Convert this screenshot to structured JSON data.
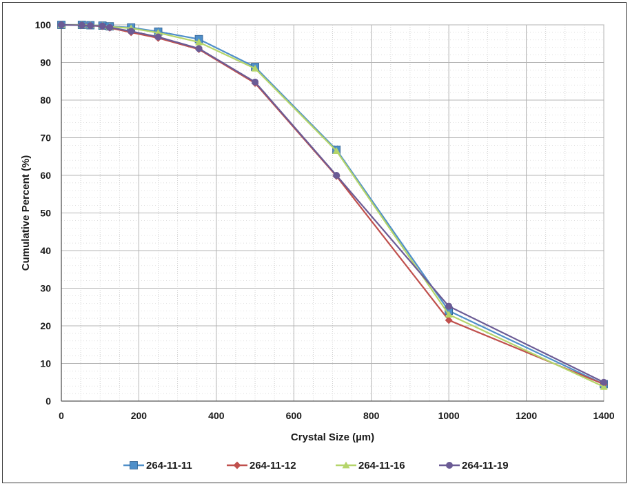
{
  "chart_data": {
    "type": "line",
    "title": "",
    "xlabel": "Crystal Size (µm)",
    "ylabel": "Cumulative Percent (%)",
    "xlim": [
      0,
      1400
    ],
    "ylim": [
      0,
      100
    ],
    "x_ticks": [
      "0",
      "200",
      "400",
      "600",
      "800",
      "1000",
      "1200",
      "1400"
    ],
    "y_ticks": [
      "0",
      "10",
      "20",
      "30",
      "40",
      "50",
      "60",
      "70",
      "80",
      "90",
      "100"
    ],
    "grid": true,
    "legend_position": "bottom",
    "x": [
      0,
      53,
      75,
      106,
      125,
      180,
      250,
      355,
      500,
      710,
      1000,
      1400
    ],
    "series": [
      {
        "name": "264-11-11",
        "color": "#4f8fc9",
        "marker": "square",
        "values": [
          100,
          100,
          99.9,
          99.8,
          99.6,
          99.3,
          98.2,
          96.2,
          88.8,
          66.8,
          24.0,
          4.5
        ]
      },
      {
        "name": "264-11-12",
        "color": "#c0504d",
        "marker": "diamond",
        "values": [
          100,
          99.9,
          99.8,
          99.6,
          99.2,
          98.0,
          96.5,
          93.5,
          84.5,
          59.8,
          21.5,
          4.5
        ]
      },
      {
        "name": "264-11-16",
        "color": "#b5d56a",
        "marker": "triangle",
        "values": [
          100,
          100,
          99.9,
          99.8,
          99.5,
          99.1,
          97.9,
          95.4,
          88.4,
          66.5,
          23.0,
          3.8
        ]
      },
      {
        "name": "264-11-19",
        "color": "#6b5b95",
        "marker": "circle",
        "values": [
          100,
          99.9,
          99.8,
          99.7,
          99.3,
          98.3,
          96.8,
          93.7,
          84.8,
          60.0,
          25.2,
          5.0
        ]
      }
    ]
  }
}
